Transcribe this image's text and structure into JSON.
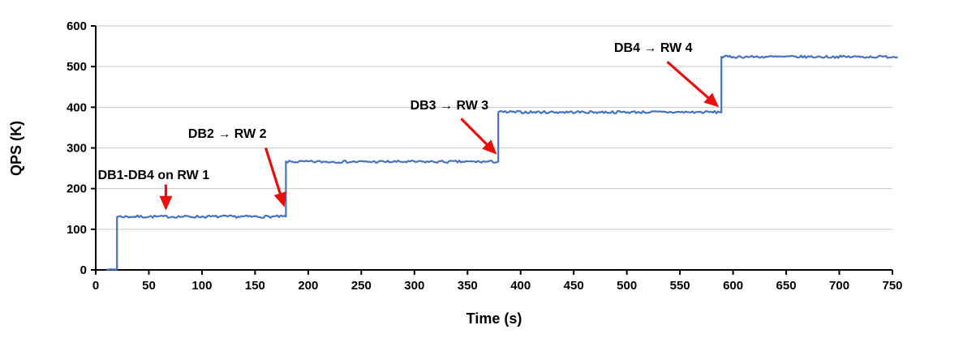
{
  "chart_data": {
    "type": "line",
    "title": "",
    "xlabel": "Time (s)",
    "ylabel": "QPS (K)",
    "xlim": [
      0,
      750
    ],
    "ylim": [
      0,
      600
    ],
    "x_ticks": [
      0,
      50,
      100,
      150,
      200,
      250,
      300,
      350,
      400,
      450,
      500,
      550,
      600,
      650,
      700,
      750
    ],
    "y_ticks": [
      0,
      100,
      200,
      300,
      400,
      500,
      600
    ],
    "grid": true,
    "legend": "none",
    "line_color": "#4472C4",
    "arrow_color": "#E8100C",
    "grid_color": "#C9C9C9",
    "axis_color": "#000000",
    "noise_seed": 7,
    "series": [
      {
        "name": "QPS",
        "segments": [
          {
            "from": 10,
            "to": 20,
            "value": 1,
            "noise": 0.5
          },
          {
            "from": 20,
            "to": 179,
            "value": 131,
            "noise": 3
          },
          {
            "from": 179,
            "to": 379,
            "value": 266,
            "noise": 3
          },
          {
            "from": 379,
            "to": 589,
            "value": 388,
            "noise": 3
          },
          {
            "from": 589,
            "to": 755,
            "value": 524,
            "noise": 3
          }
        ]
      }
    ],
    "annotations": [
      {
        "label": "DB1-DB4 on RW 1",
        "label_x": 2,
        "label_y": 223,
        "arrow": [
          66,
          210,
          66,
          152
        ]
      },
      {
        "label": "DB2 → RW 2",
        "label_x": 87,
        "label_y": 325,
        "arrow": [
          160,
          300,
          177,
          160
        ]
      },
      {
        "label": "DB3 → RW 3",
        "label_x": 296,
        "label_y": 395,
        "arrow": [
          344,
          372,
          376,
          288
        ]
      },
      {
        "label": "DB4 → RW 4",
        "label_x": 488,
        "label_y": 536,
        "arrow": [
          538,
          512,
          585,
          404
        ]
      }
    ]
  }
}
